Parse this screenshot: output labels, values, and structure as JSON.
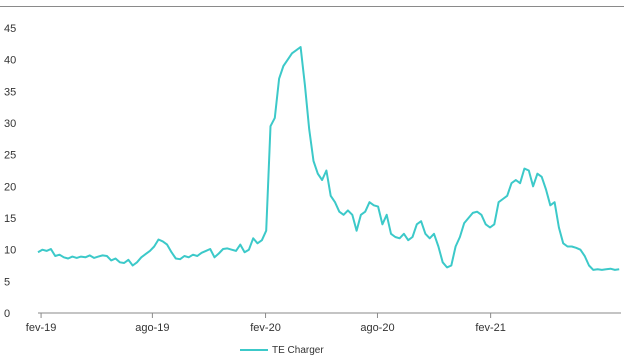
{
  "chart_data": {
    "type": "line",
    "title": "",
    "xlabel": "",
    "ylabel": "",
    "ylim": [
      0,
      45
    ],
    "yticks": [
      0,
      5,
      10,
      15,
      20,
      25,
      30,
      35,
      40,
      45
    ],
    "xticks": [
      "fev-19",
      "ago-19",
      "fev-20",
      "ago-20",
      "fev-21"
    ],
    "grid": false,
    "legend": "bottom-center",
    "series": [
      {
        "name": "TE Charger",
        "color": "#3cc9c9",
        "x": [
          "2019-01-27",
          "2019-02-03",
          "2019-02-10",
          "2019-02-17",
          "2019-02-24",
          "2019-03-03",
          "2019-03-10",
          "2019-03-17",
          "2019-03-24",
          "2019-03-31",
          "2019-04-07",
          "2019-04-14",
          "2019-04-21",
          "2019-04-28",
          "2019-05-05",
          "2019-05-12",
          "2019-05-19",
          "2019-05-26",
          "2019-06-02",
          "2019-06-09",
          "2019-06-16",
          "2019-06-23",
          "2019-06-30",
          "2019-07-07",
          "2019-07-14",
          "2019-07-21",
          "2019-07-28",
          "2019-08-04",
          "2019-08-11",
          "2019-08-18",
          "2019-08-25",
          "2019-09-01",
          "2019-09-08",
          "2019-09-15",
          "2019-09-22",
          "2019-09-29",
          "2019-10-06",
          "2019-10-13",
          "2019-10-20",
          "2019-10-27",
          "2019-11-03",
          "2019-11-10",
          "2019-11-17",
          "2019-11-24",
          "2019-12-01",
          "2019-12-08",
          "2019-12-15",
          "2019-12-22",
          "2019-12-29",
          "2020-01-05",
          "2020-01-12",
          "2020-01-19",
          "2020-01-26",
          "2020-02-02",
          "2020-02-09",
          "2020-02-16",
          "2020-02-23",
          "2020-03-01",
          "2020-03-08",
          "2020-03-15",
          "2020-03-22",
          "2020-03-29",
          "2020-04-05",
          "2020-04-12",
          "2020-04-19",
          "2020-04-26",
          "2020-05-03",
          "2020-05-10",
          "2020-05-17",
          "2020-05-24",
          "2020-05-31",
          "2020-06-07",
          "2020-06-14",
          "2020-06-21",
          "2020-06-28",
          "2020-07-05",
          "2020-07-12",
          "2020-07-19",
          "2020-07-26",
          "2020-08-02",
          "2020-08-09",
          "2020-08-16",
          "2020-08-23",
          "2020-08-30",
          "2020-09-06",
          "2020-09-13",
          "2020-09-20",
          "2020-09-27",
          "2020-10-04",
          "2020-10-11",
          "2020-10-18",
          "2020-10-25",
          "2020-11-01",
          "2020-11-08",
          "2020-11-15",
          "2020-11-22",
          "2020-11-29",
          "2020-12-06",
          "2020-12-13",
          "2020-12-20",
          "2020-12-27",
          "2021-01-03",
          "2021-01-10",
          "2021-01-17",
          "2021-01-24",
          "2021-01-31",
          "2021-02-07",
          "2021-02-14",
          "2021-02-21",
          "2021-02-28",
          "2021-03-07",
          "2021-03-14",
          "2021-03-21",
          "2021-03-28",
          "2021-04-04",
          "2021-04-11",
          "2021-04-18",
          "2021-04-25",
          "2021-05-02",
          "2021-05-09",
          "2021-05-16",
          "2021-05-23",
          "2021-05-30",
          "2021-06-06",
          "2021-06-13",
          "2021-06-20",
          "2021-06-27",
          "2021-07-04",
          "2021-07-11",
          "2021-07-18",
          "2021-07-25",
          "2021-08-01",
          "2021-08-08",
          "2021-08-15",
          "2021-08-22",
          "2021-08-29"
        ],
        "values": [
          9.6,
          10.0,
          9.8,
          10.1,
          9.0,
          9.2,
          8.8,
          8.6,
          8.9,
          8.7,
          8.9,
          8.8,
          9.1,
          8.7,
          8.9,
          9.1,
          9.0,
          8.3,
          8.6,
          8.0,
          7.9,
          8.4,
          7.5,
          8.0,
          8.8,
          9.3,
          9.8,
          10.5,
          11.6,
          11.3,
          10.8,
          9.6,
          8.6,
          8.5,
          9.0,
          8.8,
          9.2,
          9.0,
          9.5,
          9.8,
          10.1,
          8.8,
          9.4,
          10.1,
          10.2,
          10.0,
          9.8,
          10.8,
          9.6,
          10.0,
          11.8,
          11.0,
          11.5,
          13.0,
          29.5,
          30.8,
          37.0,
          39.0,
          40.0,
          41.0,
          41.5,
          42.0,
          36.0,
          29.0,
          24.0,
          22.0,
          21.0,
          22.5,
          18.5,
          17.5,
          16.0,
          15.5,
          16.2,
          15.5,
          13.0,
          15.5,
          16.0,
          17.5,
          17.0,
          16.8,
          14.0,
          15.5,
          12.5,
          12.0,
          11.8,
          12.5,
          11.5,
          12.0,
          14.0,
          14.5,
          12.5,
          11.8,
          12.5,
          10.5,
          8.0,
          7.2,
          7.5,
          10.5,
          12.0,
          14.2,
          15.0,
          15.8,
          16.0,
          15.5,
          14.0,
          13.5,
          14.0,
          17.5,
          18.0,
          18.5,
          20.5,
          21.0,
          20.5,
          22.8,
          22.5,
          20.0,
          22.0,
          21.5,
          19.5,
          17.0,
          17.5,
          13.5,
          11.0,
          10.5,
          10.5,
          10.3,
          10.0,
          9.0,
          7.5,
          6.8,
          6.9,
          6.8,
          6.9,
          7.0,
          6.8,
          6.9
        ]
      }
    ]
  }
}
